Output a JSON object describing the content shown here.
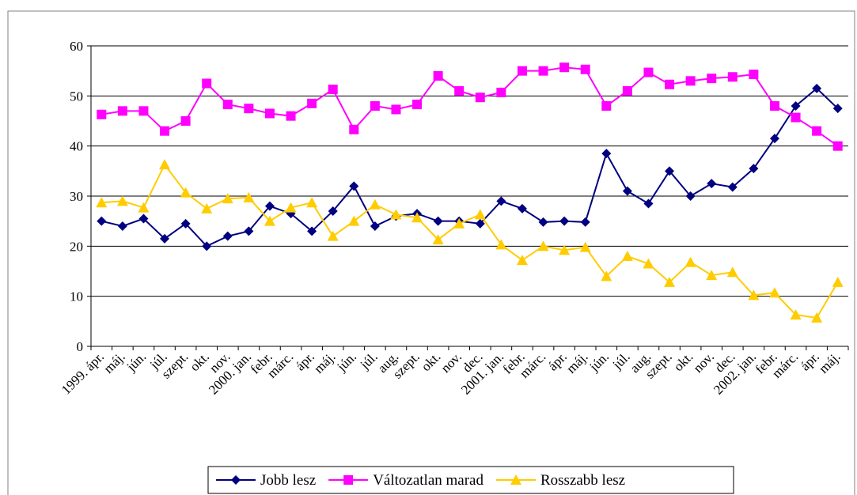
{
  "chart_data": {
    "type": "line",
    "categories": [
      "1999. ápr.",
      "máj.",
      "jún.",
      "júl.",
      "szept.",
      "okt.",
      "nov.",
      "2000. jan.",
      "febr.",
      "márc.",
      "ápr.",
      "máj.",
      "jún.",
      "júl.",
      "aug.",
      "szept.",
      "okt.",
      "nov.",
      "dec.",
      "2001. jan.",
      "febr.",
      "márc.",
      "ápr.",
      "máj.",
      "jún.",
      "júl.",
      "aug.",
      "szept.",
      "okt.",
      "nov.",
      "dec.",
      "2002. jan.",
      "febr.",
      "márc.",
      "ápr.",
      "máj."
    ],
    "series": [
      {
        "name": "Jobb lesz",
        "color": "#000080",
        "marker": "diamond",
        "values": [
          25,
          24,
          25.5,
          21.5,
          24.5,
          20,
          22,
          23,
          28,
          26.5,
          23,
          27,
          32,
          24,
          26,
          26.5,
          25,
          25,
          24.5,
          29,
          27.5,
          24.8,
          25,
          24.8,
          38.5,
          31,
          28.5,
          35,
          30,
          32.5,
          31.8,
          35.5,
          41.5,
          48,
          51.5,
          47.5
        ]
      },
      {
        "name": "Változatlan marad",
        "color": "#ff00ff",
        "marker": "square",
        "values": [
          46.3,
          47,
          47,
          43,
          45,
          52.5,
          48.3,
          47.5,
          46.5,
          46,
          48.5,
          51.3,
          43.3,
          48,
          47.3,
          48.3,
          54,
          51,
          49.7,
          50.7,
          55,
          55,
          55.7,
          55.3,
          48,
          51,
          54.7,
          52.3,
          53,
          53.5,
          53.8,
          54.3,
          48,
          45.7,
          43,
          40
        ]
      },
      {
        "name": "Rosszabb lesz",
        "color": "#ffcc00",
        "marker": "triangle",
        "values": [
          28.7,
          29,
          27.7,
          36.3,
          30.7,
          27.5,
          29.5,
          29.7,
          25,
          27.7,
          28.7,
          22,
          25,
          28.3,
          26.3,
          25.7,
          21.3,
          24.5,
          26.3,
          20.3,
          17.2,
          20,
          19.2,
          19.8,
          14,
          18,
          16.5,
          12.8,
          16.8,
          14.2,
          14.8,
          10.2,
          10.7,
          6.3,
          5.7,
          12.8
        ]
      }
    ],
    "ylim": [
      0,
      60
    ],
    "yticks": [
      0,
      10,
      20,
      30,
      40,
      50,
      60
    ],
    "grid": true,
    "legend": "bottom"
  }
}
